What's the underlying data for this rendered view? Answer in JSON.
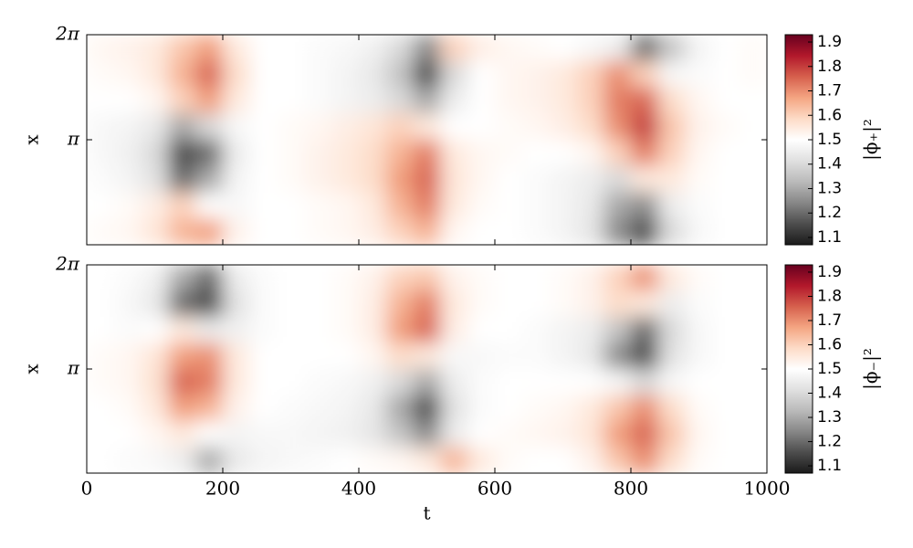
{
  "chart_data": [
    {
      "type": "heatmap",
      "ylabel": "x",
      "xlim": [
        0,
        1000
      ],
      "xticks": [
        0,
        200,
        400,
        600,
        800,
        1000
      ],
      "xtick_labels": false,
      "ylim": [
        0,
        6.283
      ],
      "yticks": [
        {
          "value": 3.1416,
          "label": "π"
        },
        {
          "value": 6.283,
          "label": "2π"
        }
      ],
      "colorbar_label": "|ϕ₊|²",
      "clim": [
        1.07,
        1.93
      ],
      "cticks": [
        1.1,
        1.2,
        1.3,
        1.4,
        1.5,
        1.6,
        1.7,
        1.8,
        1.9
      ],
      "colormap": [
        "#1a1a1a",
        "#4d4d4d",
        "#878787",
        "#bababa",
        "#e0e0e0",
        "#ffffff",
        "#fddbc7",
        "#f4a582",
        "#d6604d",
        "#b2182b",
        "#67001f"
      ],
      "z": [
        [
          1.52,
          1.53,
          1.55,
          1.62,
          1.68,
          1.55,
          1.5,
          1.5,
          1.49,
          1.48,
          1.46,
          1.4,
          1.25,
          1.6,
          1.54,
          1.52,
          1.51,
          1.5,
          1.48,
          1.45,
          1.2,
          1.35,
          1.47,
          1.5,
          1.51
        ],
        [
          1.51,
          1.52,
          1.55,
          1.65,
          1.75,
          1.58,
          1.5,
          1.5,
          1.49,
          1.47,
          1.44,
          1.35,
          1.15,
          1.4,
          1.5,
          1.52,
          1.53,
          1.55,
          1.6,
          1.7,
          1.6,
          1.48,
          1.49,
          1.5,
          1.51
        ],
        [
          1.5,
          1.5,
          1.52,
          1.6,
          1.68,
          1.55,
          1.5,
          1.5,
          1.49,
          1.47,
          1.45,
          1.4,
          1.3,
          1.45,
          1.5,
          1.52,
          1.53,
          1.55,
          1.6,
          1.72,
          1.75,
          1.58,
          1.52,
          1.5,
          1.5
        ],
        [
          1.48,
          1.47,
          1.44,
          1.3,
          1.4,
          1.48,
          1.5,
          1.51,
          1.52,
          1.54,
          1.56,
          1.6,
          1.55,
          1.5,
          1.5,
          1.51,
          1.52,
          1.54,
          1.58,
          1.7,
          1.8,
          1.62,
          1.53,
          1.51,
          1.5
        ],
        [
          1.48,
          1.46,
          1.4,
          1.15,
          1.2,
          1.45,
          1.5,
          1.51,
          1.53,
          1.55,
          1.58,
          1.65,
          1.72,
          1.55,
          1.52,
          1.51,
          1.5,
          1.5,
          1.52,
          1.6,
          1.72,
          1.6,
          1.52,
          1.5,
          1.5
        ],
        [
          1.49,
          1.47,
          1.42,
          1.2,
          1.3,
          1.47,
          1.5,
          1.51,
          1.53,
          1.55,
          1.58,
          1.68,
          1.75,
          1.56,
          1.52,
          1.5,
          1.49,
          1.47,
          1.45,
          1.4,
          1.55,
          1.55,
          1.51,
          1.5,
          1.5
        ],
        [
          1.5,
          1.51,
          1.54,
          1.6,
          1.5,
          1.48,
          1.5,
          1.5,
          1.51,
          1.52,
          1.55,
          1.65,
          1.72,
          1.55,
          1.51,
          1.5,
          1.49,
          1.47,
          1.44,
          1.3,
          1.25,
          1.45,
          1.49,
          1.5,
          1.5
        ],
        [
          1.51,
          1.52,
          1.56,
          1.65,
          1.68,
          1.53,
          1.5,
          1.5,
          1.51,
          1.52,
          1.54,
          1.6,
          1.65,
          1.52,
          1.5,
          1.5,
          1.49,
          1.47,
          1.43,
          1.25,
          1.15,
          1.4,
          1.48,
          1.5,
          1.5
        ]
      ]
    },
    {
      "type": "heatmap",
      "ylabel": "x",
      "xlabel": "t",
      "xlim": [
        0,
        1000
      ],
      "xticks": [
        0,
        200,
        400,
        600,
        800,
        1000
      ],
      "xtick_labels": true,
      "ylim": [
        0,
        6.283
      ],
      "yticks": [
        {
          "value": 3.1416,
          "label": "π"
        },
        {
          "value": 6.283,
          "label": "2π"
        }
      ],
      "colorbar_label": "|ϕ₋|²",
      "clim": [
        1.07,
        1.93
      ],
      "cticks": [
        1.1,
        1.2,
        1.3,
        1.4,
        1.5,
        1.6,
        1.7,
        1.8,
        1.9
      ],
      "colormap": [
        "#1a1a1a",
        "#4d4d4d",
        "#878787",
        "#bababa",
        "#e0e0e0",
        "#ffffff",
        "#fddbc7",
        "#f4a582",
        "#d6604d",
        "#b2182b",
        "#67001f"
      ],
      "z": [
        [
          1.5,
          1.49,
          1.46,
          1.3,
          1.2,
          1.45,
          1.49,
          1.5,
          1.5,
          1.51,
          1.53,
          1.6,
          1.62,
          1.53,
          1.51,
          1.5,
          1.5,
          1.51,
          1.53,
          1.6,
          1.7,
          1.55,
          1.51,
          1.5,
          1.5
        ],
        [
          1.5,
          1.48,
          1.44,
          1.2,
          1.15,
          1.42,
          1.49,
          1.5,
          1.5,
          1.51,
          1.54,
          1.65,
          1.72,
          1.55,
          1.51,
          1.5,
          1.5,
          1.51,
          1.53,
          1.58,
          1.55,
          1.45,
          1.49,
          1.5,
          1.5
        ],
        [
          1.5,
          1.49,
          1.5,
          1.55,
          1.45,
          1.46,
          1.49,
          1.5,
          1.5,
          1.51,
          1.54,
          1.68,
          1.75,
          1.54,
          1.5,
          1.5,
          1.49,
          1.47,
          1.45,
          1.35,
          1.2,
          1.4,
          1.48,
          1.5,
          1.5
        ],
        [
          1.51,
          1.52,
          1.56,
          1.68,
          1.7,
          1.55,
          1.5,
          1.5,
          1.5,
          1.5,
          1.52,
          1.58,
          1.55,
          1.48,
          1.48,
          1.49,
          1.49,
          1.47,
          1.44,
          1.25,
          1.15,
          1.42,
          1.48,
          1.5,
          1.5
        ],
        [
          1.51,
          1.52,
          1.57,
          1.75,
          1.72,
          1.55,
          1.5,
          1.5,
          1.49,
          1.48,
          1.46,
          1.4,
          1.3,
          1.45,
          1.49,
          1.5,
          1.5,
          1.5,
          1.5,
          1.48,
          1.4,
          1.48,
          1.5,
          1.5,
          1.5
        ],
        [
          1.5,
          1.51,
          1.55,
          1.68,
          1.65,
          1.53,
          1.5,
          1.49,
          1.48,
          1.47,
          1.44,
          1.3,
          1.15,
          1.42,
          1.49,
          1.5,
          1.51,
          1.52,
          1.55,
          1.62,
          1.7,
          1.58,
          1.51,
          1.5,
          1.5
        ],
        [
          1.5,
          1.5,
          1.52,
          1.55,
          1.5,
          1.47,
          1.48,
          1.48,
          1.47,
          1.46,
          1.43,
          1.35,
          1.25,
          1.45,
          1.5,
          1.51,
          1.52,
          1.53,
          1.56,
          1.68,
          1.75,
          1.62,
          1.52,
          1.5,
          1.5
        ],
        [
          1.5,
          1.49,
          1.48,
          1.45,
          1.3,
          1.44,
          1.47,
          1.48,
          1.49,
          1.5,
          1.51,
          1.52,
          1.55,
          1.65,
          1.55,
          1.51,
          1.5,
          1.5,
          1.53,
          1.62,
          1.7,
          1.58,
          1.51,
          1.5,
          1.5
        ]
      ]
    }
  ]
}
